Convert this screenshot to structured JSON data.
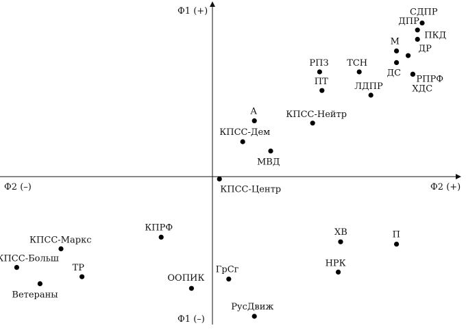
{
  "chart_data": {
    "type": "scatter",
    "axis_labels": {
      "x_positive": "Ф2 (+)",
      "x_negative": "Ф2 (–)",
      "y_positive": "Ф1 (+)",
      "y_negative": "Ф1 (–)"
    },
    "xlim": [
      -9.5,
      9.4
    ],
    "ylim": [
      -6.2,
      7.6
    ],
    "grid": false,
    "legend": "none",
    "point_color": "#000000",
    "points": [
      {
        "label": "СДПР",
        "x": 9.0,
        "y": 6.6
      },
      {
        "label": "ДПР",
        "x": 8.8,
        "y": 6.3
      },
      {
        "label": "ПКД",
        "x": 8.8,
        "y": 5.9
      },
      {
        "label": "М",
        "x": 7.9,
        "y": 5.4
      },
      {
        "label": "ДР",
        "x": 8.4,
        "y": 5.2
      },
      {
        "label": "ДС",
        "x": 7.9,
        "y": 4.9
      },
      {
        "label": "РПРФ",
        "x": 8.6,
        "y": 4.4
      },
      {
        "label": "ХДС",
        "x": 8.6,
        "y": 4.4
      },
      {
        "label": "РПЗ",
        "x": 4.6,
        "y": 4.5
      },
      {
        "label": "ТСН",
        "x": 6.3,
        "y": 4.5
      },
      {
        "label": "ПТ",
        "x": 4.7,
        "y": 3.7
      },
      {
        "label": "ЛДПР",
        "x": 6.8,
        "y": 3.5
      },
      {
        "label": "А",
        "x": 1.8,
        "y": 2.4
      },
      {
        "label": "КПСС-Нейтр",
        "x": 4.3,
        "y": 2.3
      },
      {
        "label": "КПСС-Дем",
        "x": 1.3,
        "y": 1.5
      },
      {
        "label": "МВД",
        "x": 2.5,
        "y": 1.1
      },
      {
        "label": "КПСС-Центр",
        "x": 0.3,
        "y": -0.1
      },
      {
        "label": "КПРФ",
        "x": -2.2,
        "y": -2.6
      },
      {
        "label": "КПСС-Маркс",
        "x": -6.5,
        "y": -3.1
      },
      {
        "label": "ХВ",
        "x": 5.5,
        "y": -2.8
      },
      {
        "label": "П",
        "x": 7.9,
        "y": -2.9
      },
      {
        "label": "КПСС-Больш",
        "x": -8.4,
        "y": -3.9
      },
      {
        "label": "ТР",
        "x": -5.6,
        "y": -4.3
      },
      {
        "label": "НРК",
        "x": 5.4,
        "y": -4.1
      },
      {
        "label": "ГрСг",
        "x": 0.7,
        "y": -4.4
      },
      {
        "label": "Ветераны",
        "x": -7.4,
        "y": -4.6
      },
      {
        "label": "ООПИК",
        "x": -0.9,
        "y": -4.8
      },
      {
        "label": "РусДвиж",
        "x": 1.8,
        "y": -6.0
      }
    ]
  }
}
